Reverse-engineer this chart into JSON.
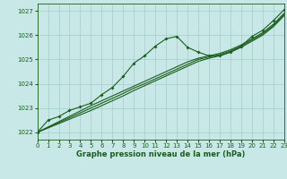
{
  "xlabel": "Graphe pression niveau de la mer (hPa)",
  "xlim": [
    0,
    23
  ],
  "ylim": [
    1021.7,
    1027.3
  ],
  "yticks": [
    1022,
    1023,
    1024,
    1025,
    1026,
    1027
  ],
  "xticks": [
    0,
    1,
    2,
    3,
    4,
    5,
    6,
    7,
    8,
    9,
    10,
    11,
    12,
    13,
    14,
    15,
    16,
    17,
    18,
    19,
    20,
    21,
    22,
    23
  ],
  "bg_color": "#c8e8e8",
  "grid_color": "#9fcfcf",
  "line_color": "#1a5e1a",
  "label_color": "#1a5e1a",
  "series_wavy": {
    "x": [
      0,
      1,
      2,
      3,
      4,
      5,
      6,
      7,
      8,
      9,
      10,
      11,
      12,
      13,
      14,
      15,
      16,
      17,
      18,
      19,
      20,
      21,
      22,
      23
    ],
    "y": [
      1022.0,
      1022.5,
      1022.65,
      1022.9,
      1023.05,
      1023.2,
      1023.55,
      1023.85,
      1024.3,
      1024.85,
      1025.15,
      1025.55,
      1025.85,
      1025.95,
      1025.5,
      1025.3,
      1025.15,
      1025.15,
      1025.3,
      1025.55,
      1025.95,
      1026.2,
      1026.6,
      1027.05
    ]
  },
  "series_straight1": {
    "x": [
      0,
      1,
      2,
      3,
      4,
      5,
      6,
      7,
      8,
      9,
      10,
      11,
      12,
      13,
      14,
      15,
      16,
      17,
      18,
      19,
      20,
      21,
      22,
      23
    ],
    "y": [
      1022.0,
      1022.22,
      1022.44,
      1022.66,
      1022.88,
      1023.1,
      1023.3,
      1023.5,
      1023.7,
      1023.9,
      1024.1,
      1024.3,
      1024.5,
      1024.7,
      1024.9,
      1025.05,
      1025.15,
      1025.25,
      1025.4,
      1025.6,
      1025.85,
      1026.1,
      1026.45,
      1026.9
    ]
  },
  "series_straight2": {
    "x": [
      0,
      1,
      2,
      3,
      4,
      5,
      6,
      7,
      8,
      9,
      10,
      11,
      12,
      13,
      14,
      15,
      16,
      17,
      18,
      19,
      20,
      21,
      22,
      23
    ],
    "y": [
      1022.0,
      1022.2,
      1022.4,
      1022.6,
      1022.8,
      1023.0,
      1023.2,
      1023.4,
      1023.6,
      1023.82,
      1024.0,
      1024.2,
      1024.4,
      1024.6,
      1024.8,
      1025.0,
      1025.1,
      1025.2,
      1025.35,
      1025.55,
      1025.8,
      1026.05,
      1026.4,
      1026.85
    ]
  },
  "series_straight3": {
    "x": [
      0,
      1,
      2,
      3,
      4,
      5,
      6,
      7,
      8,
      9,
      10,
      11,
      12,
      13,
      14,
      15,
      16,
      17,
      18,
      19,
      20,
      21,
      22,
      23
    ],
    "y": [
      1022.0,
      1022.18,
      1022.36,
      1022.54,
      1022.72,
      1022.9,
      1023.1,
      1023.3,
      1023.5,
      1023.72,
      1023.92,
      1024.12,
      1024.32,
      1024.52,
      1024.72,
      1024.92,
      1025.05,
      1025.15,
      1025.3,
      1025.5,
      1025.75,
      1026.0,
      1026.35,
      1026.8
    ]
  }
}
